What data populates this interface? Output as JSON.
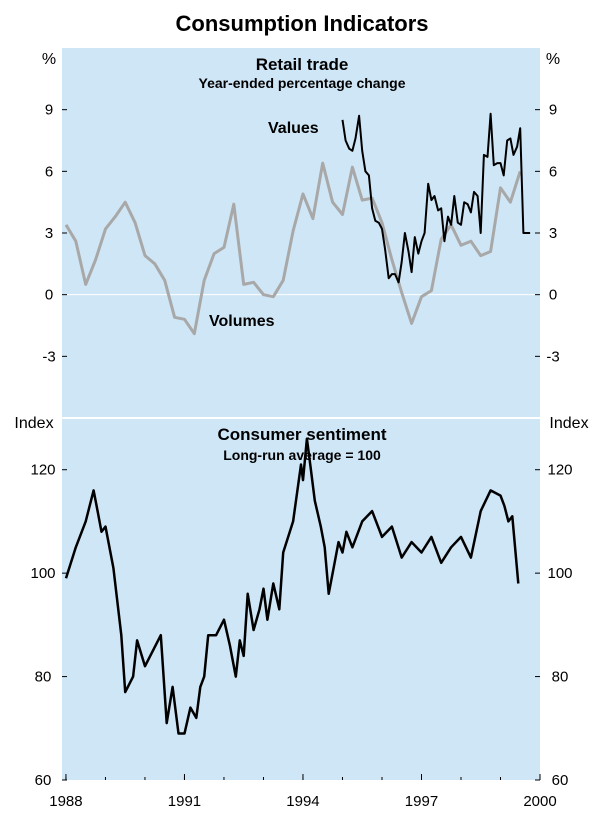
{
  "title": "Consumption Indicators",
  "colors": {
    "background": "#ffffff",
    "panel_top": "#cfe6f6",
    "panel_bottom": "#cfe6f6",
    "values": "#000000",
    "volumes": "#a8a8a8",
    "sentiment": "#000000"
  },
  "chart_data": [
    {
      "type": "line",
      "title": "Retail trade",
      "subtitle": "Year-ended percentage change",
      "ylabel_left": "%",
      "ylabel_right": "%",
      "ylim": [
        -6,
        12
      ],
      "yticks": [
        "9",
        "6",
        "3",
        "0",
        "-3"
      ],
      "ytick_values": [
        9,
        6,
        3,
        0,
        -3
      ],
      "series": [
        {
          "name": "Values",
          "x": [
            1995.0,
            1995.08,
            1995.17,
            1995.25,
            1995.33,
            1995.42,
            1995.5,
            1995.58,
            1995.67,
            1995.75,
            1995.83,
            1995.92,
            1996.0,
            1996.08,
            1996.17,
            1996.25,
            1996.33,
            1996.42,
            1996.5,
            1996.58,
            1996.67,
            1996.75,
            1996.83,
            1996.92,
            1997.0,
            1997.08,
            1997.17,
            1997.25,
            1997.33,
            1997.42,
            1997.5,
            1997.58,
            1997.67,
            1997.75,
            1997.83,
            1997.92,
            1998.0,
            1998.08,
            1998.17,
            1998.25,
            1998.33,
            1998.42,
            1998.5,
            1998.58,
            1998.67,
            1998.75,
            1998.83,
            1998.92,
            1999.0,
            1999.08,
            1999.17,
            1999.25,
            1999.33,
            1999.42,
            1999.5,
            1999.58,
            1999.67,
            1999.75
          ],
          "values": [
            8.5,
            7.5,
            7.1,
            7.0,
            7.6,
            8.7,
            7.0,
            6.0,
            5.8,
            4.2,
            3.6,
            3.5,
            3.2,
            2.2,
            0.8,
            1.0,
            1.0,
            0.6,
            1.6,
            3.0,
            2.1,
            1.1,
            2.8,
            2.0,
            2.6,
            3.0,
            5.4,
            4.6,
            4.8,
            4.1,
            4.2,
            2.6,
            3.8,
            3.4,
            4.8,
            3.5,
            3.4,
            4.5,
            4.4,
            4.0,
            5.0,
            4.8,
            3.0,
            6.8,
            6.7,
            8.8,
            6.3,
            6.4,
            6.4,
            5.8,
            7.5,
            7.6,
            6.8,
            7.2,
            8.1,
            3.0,
            3.0,
            3.0
          ]
        },
        {
          "name": "Volumes",
          "x": [
            1988.0,
            1988.25,
            1988.5,
            1988.75,
            1989.0,
            1989.25,
            1989.5,
            1989.75,
            1990.0,
            1990.25,
            1990.5,
            1990.75,
            1991.0,
            1991.25,
            1991.5,
            1991.75,
            1992.0,
            1992.25,
            1992.5,
            1992.75,
            1993.0,
            1993.25,
            1993.5,
            1993.75,
            1994.0,
            1994.25,
            1994.5,
            1994.75,
            1995.0,
            1995.25,
            1995.5,
            1995.75,
            1996.0,
            1996.25,
            1996.5,
            1996.75,
            1997.0,
            1997.25,
            1997.5,
            1997.75,
            1998.0,
            1998.25,
            1998.5,
            1998.75,
            1999.0,
            1999.25,
            1999.5
          ],
          "values": [
            3.4,
            2.6,
            0.5,
            1.7,
            3.2,
            3.8,
            4.5,
            3.5,
            1.9,
            1.5,
            0.7,
            -1.1,
            -1.2,
            -1.9,
            0.7,
            2.0,
            2.3,
            4.4,
            0.5,
            0.6,
            0.0,
            -0.1,
            0.7,
            3.1,
            4.9,
            3.7,
            6.4,
            4.5,
            3.9,
            6.2,
            4.6,
            4.7,
            3.5,
            1.7,
            0.1,
            -1.4,
            -0.1,
            0.2,
            2.7,
            3.4,
            2.4,
            2.6,
            1.9,
            2.1,
            5.2,
            4.5,
            6.0
          ]
        }
      ],
      "annotations": [
        "Values",
        "Volumes"
      ]
    },
    {
      "type": "line",
      "title": "Consumer sentiment",
      "subtitle": "Long-run average = 100",
      "ylabel_left": "Index",
      "ylabel_right": "Index",
      "ylim": [
        60,
        130
      ],
      "yticks": [
        "120",
        "100",
        "80",
        "60"
      ],
      "ytick_values": [
        120,
        100,
        80,
        60
      ],
      "xlim": [
        1987.9,
        2000.0
      ],
      "xticks": [
        "1988",
        "1991",
        "1994",
        "1997",
        "2000"
      ],
      "xtick_values": [
        1988,
        1991,
        1994,
        1997,
        2000
      ],
      "series": [
        {
          "name": "Consumer sentiment",
          "x": [
            1988.0,
            1988.25,
            1988.5,
            1988.7,
            1988.8,
            1988.9,
            1989.0,
            1989.2,
            1989.4,
            1989.5,
            1989.7,
            1989.8,
            1990.0,
            1990.2,
            1990.4,
            1990.55,
            1990.7,
            1990.85,
            1991.0,
            1991.15,
            1991.3,
            1991.4,
            1991.5,
            1991.6,
            1991.8,
            1992.0,
            1992.15,
            1992.3,
            1992.4,
            1992.5,
            1992.6,
            1992.75,
            1992.9,
            1993.0,
            1993.1,
            1993.25,
            1993.4,
            1993.5,
            1993.75,
            1993.95,
            1994.0,
            1994.1,
            1994.2,
            1994.3,
            1994.45,
            1994.55,
            1994.65,
            1994.8,
            1994.9,
            1995.0,
            1995.1,
            1995.25,
            1995.4,
            1995.5,
            1995.75,
            1996.0,
            1996.25,
            1996.5,
            1996.75,
            1997.0,
            1997.25,
            1997.5,
            1997.75,
            1998.0,
            1998.25,
            1998.5,
            1998.75,
            1999.0,
            1999.1,
            1999.2,
            1999.3,
            1999.45
          ],
          "values": [
            99,
            105,
            110,
            116,
            112,
            108,
            109,
            101,
            88,
            77,
            80,
            87,
            82,
            85,
            88,
            71,
            78,
            69,
            69,
            74,
            72,
            78,
            80,
            88,
            88,
            91,
            86,
            80,
            87,
            84,
            96,
            89,
            93,
            97,
            91,
            98,
            93,
            104,
            110,
            121,
            118,
            126,
            120,
            114,
            109,
            105,
            96,
            102,
            106,
            104,
            108,
            105,
            108,
            110,
            112,
            107,
            109,
            103,
            106,
            104,
            107,
            102,
            105,
            107,
            103,
            112,
            116,
            115,
            113,
            110,
            111,
            98
          ]
        }
      ]
    }
  ]
}
